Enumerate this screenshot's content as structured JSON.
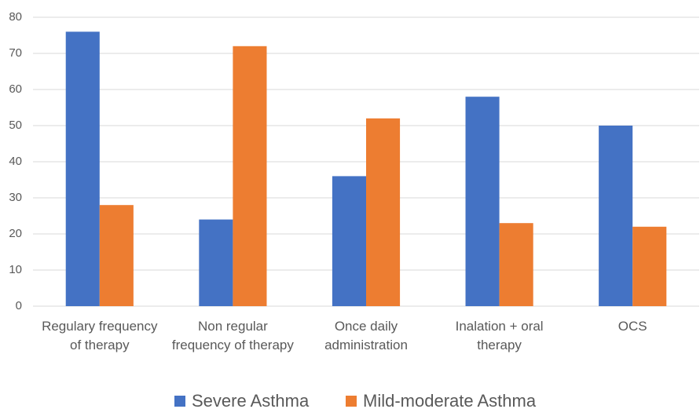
{
  "chart_data": {
    "type": "bar",
    "categories": [
      "Regulary frequency of therapy",
      "Non regular frequency of therapy",
      "Once daily administration",
      "Inalation + oral therapy",
      "OCS"
    ],
    "series": [
      {
        "name": "Severe Asthma",
        "color": "#4472c4",
        "values": [
          76,
          24,
          36,
          58,
          50
        ]
      },
      {
        "name": "Mild-moderate Asthma",
        "color": "#ed7d31",
        "values": [
          28,
          72,
          52,
          23,
          22
        ]
      }
    ],
    "ylim": [
      0,
      80
    ],
    "yticks": [
      0,
      10,
      20,
      30,
      40,
      50,
      60,
      70,
      80
    ],
    "grid": true,
    "legend": "bottom"
  }
}
